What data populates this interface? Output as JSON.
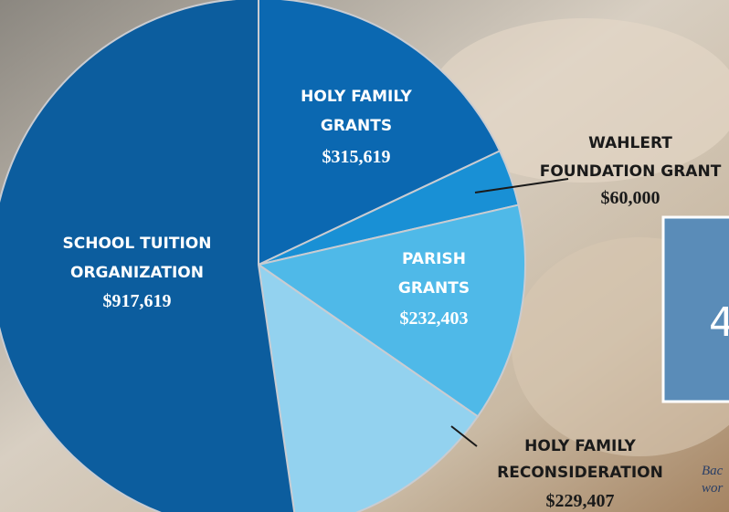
{
  "chart_data": {
    "type": "pie",
    "categories": [
      [
        "HOLY FAMILY",
        "GRANTS"
      ],
      [
        "WAHLERT",
        "FOUNDATION GRANT"
      ],
      [
        "PARISH",
        "GRANTS"
      ],
      [
        "HOLY FAMILY",
        "RECONSIDERATION"
      ],
      [
        "SCHOOL TUITION",
        "ORGANIZATION"
      ]
    ],
    "values": [
      315619,
      60000,
      232403,
      229407,
      917619
    ],
    "value_labels": [
      "$315,619",
      "$60,000",
      "$232,403",
      "$229,407",
      "$917,619"
    ],
    "colors": [
      "#0b68b1",
      "#1990d5",
      "#4fb9e8",
      "#93d2ef",
      "#0c5d9e"
    ],
    "annotations": [
      "4",
      "Bac",
      "wor"
    ]
  }
}
